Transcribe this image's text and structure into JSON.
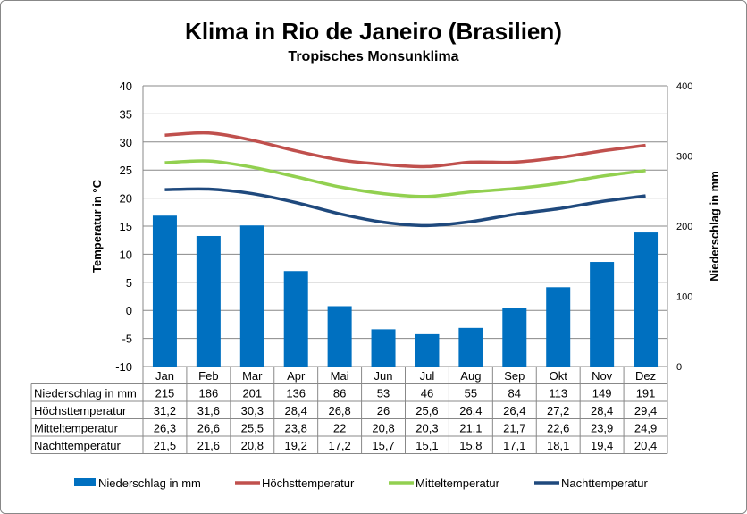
{
  "chart_data": {
    "type": "bar+line",
    "title": "Klima in Rio de Janeiro (Brasilien)",
    "subtitle": "Tropisches Monsunklima",
    "ylabel_left": "Temperatur in °C",
    "ylabel_right": "Niederschlag in mm",
    "ylim_left": [
      -10,
      40
    ],
    "yticks_left": [
      -10,
      -5,
      0,
      5,
      10,
      15,
      20,
      25,
      30,
      35,
      40
    ],
    "ylim_right": [
      0,
      400
    ],
    "yticks_right": [
      0,
      100,
      200,
      300,
      400
    ],
    "grid": true,
    "legend_position": "bottom",
    "categories": [
      "Jan",
      "Feb",
      "Mar",
      "Apr",
      "Mai",
      "Jun",
      "Jul",
      "Aug",
      "Sep",
      "Okt",
      "Nov",
      "Dez"
    ],
    "series": [
      {
        "name": "Niederschlag in mm",
        "type": "bar",
        "axis": "right",
        "color": "#0070C0",
        "values": [
          215,
          186,
          201,
          136,
          86,
          53,
          46,
          55,
          84,
          113,
          149,
          191
        ],
        "labels": [
          "215",
          "186",
          "201",
          "136",
          "86",
          "53",
          "46",
          "55",
          "84",
          "113",
          "149",
          "191"
        ]
      },
      {
        "name": "Höchsttemperatur",
        "type": "line",
        "axis": "left",
        "color": "#C0504D",
        "values": [
          31.2,
          31.6,
          30.3,
          28.4,
          26.8,
          26,
          25.6,
          26.4,
          26.4,
          27.2,
          28.4,
          29.4
        ],
        "labels": [
          "31,2",
          "31,6",
          "30,3",
          "28,4",
          "26,8",
          "26",
          "25,6",
          "26,4",
          "26,4",
          "27,2",
          "28,4",
          "29,4"
        ]
      },
      {
        "name": "Mitteltemperatur",
        "type": "line",
        "axis": "left",
        "color": "#92D050",
        "values": [
          26.3,
          26.6,
          25.5,
          23.8,
          22,
          20.8,
          20.3,
          21.1,
          21.7,
          22.6,
          23.9,
          24.9
        ],
        "labels": [
          "26,3",
          "26,6",
          "25,5",
          "23,8",
          "22",
          "20,8",
          "20,3",
          "21,1",
          "21,7",
          "22,6",
          "23,9",
          "24,9"
        ]
      },
      {
        "name": "Nachttemperatur",
        "type": "line",
        "axis": "left",
        "color": "#1F497D",
        "values": [
          21.5,
          21.6,
          20.8,
          19.2,
          17.2,
          15.7,
          15.1,
          15.8,
          17.1,
          18.1,
          19.4,
          20.4
        ],
        "labels": [
          "21,5",
          "21,6",
          "20,8",
          "19,2",
          "17,2",
          "15,7",
          "15,1",
          "15,8",
          "17,1",
          "18,1",
          "19,4",
          "20,4"
        ]
      }
    ]
  }
}
